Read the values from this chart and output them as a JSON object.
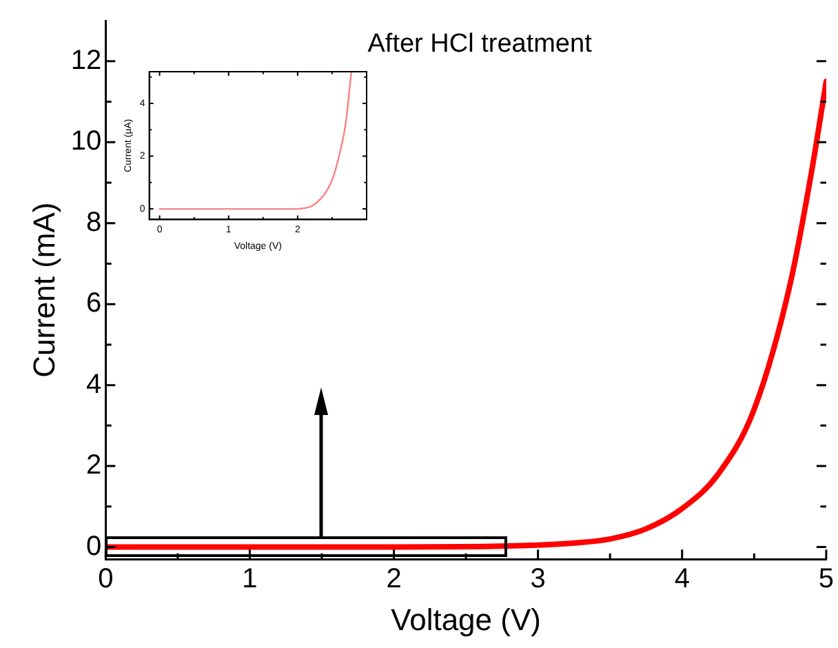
{
  "chart_data": [
    {
      "type": "line",
      "title": "After HCl treatment",
      "xlabel": "Voltage (V)",
      "ylabel": "Current (mA)",
      "legend": false,
      "grid": false,
      "marker": "none",
      "line_style": "solid",
      "xlim": [
        0,
        5
      ],
      "ylim": [
        -0.3,
        13
      ],
      "xticks": [
        0,
        {
          "value": 0.5,
          "label": null
        },
        1,
        {
          "value": 1.5,
          "label": null
        },
        2,
        {
          "value": 2.5,
          "label": null
        },
        3,
        {
          "value": 3.5,
          "label": null
        },
        4,
        {
          "value": 4.5,
          "label": null
        },
        5
      ],
      "yticks": [
        0,
        {
          "value": 1,
          "label": null
        },
        2,
        {
          "value": 3,
          "label": null
        },
        4,
        {
          "value": 5,
          "label": null
        },
        6,
        {
          "value": 7,
          "label": null
        },
        8,
        {
          "value": 9,
          "label": null
        },
        10,
        {
          "value": 11,
          "label": null
        },
        12
      ],
      "series": [
        {
          "color": "#ff0000",
          "x": [
            0,
            1,
            2,
            2.5,
            3,
            3.25,
            3.5,
            3.75,
            4,
            4.25,
            4.5,
            4.75,
            4.9,
            5
          ],
          "values": [
            0,
            0,
            0,
            0.01,
            0.05,
            0.1,
            0.2,
            0.45,
            0.95,
            1.8,
            3.4,
            6.5,
            9.3,
            11.5
          ]
        }
      ]
    },
    {
      "type": "line",
      "xlabel": "Voltage (V)",
      "ylabel": "Current (μA)",
      "legend": false,
      "grid": false,
      "marker": "none",
      "line_style": "solid",
      "xlim": [
        -0.15,
        3
      ],
      "ylim": [
        -0.4,
        5.2
      ],
      "xticks": [
        0,
        {
          "value": 0.5,
          "label": null
        },
        1,
        {
          "value": 1.5,
          "label": null
        },
        2,
        {
          "value": 2.5,
          "label": null
        }
      ],
      "yticks": [
        0,
        {
          "value": 1,
          "label": null
        },
        2,
        {
          "value": 3,
          "label": null
        },
        4,
        {
          "value": 5,
          "label": null
        }
      ],
      "series": [
        {
          "color": "#ff8080",
          "x": [
            0,
            1,
            2,
            2.1,
            2.2,
            2.3,
            2.4,
            2.5,
            2.6,
            2.7,
            2.75,
            2.78
          ],
          "values": [
            0,
            0,
            0,
            0.03,
            0.1,
            0.3,
            0.6,
            1.1,
            2.0,
            3.3,
            4.5,
            5.2
          ]
        }
      ]
    }
  ]
}
